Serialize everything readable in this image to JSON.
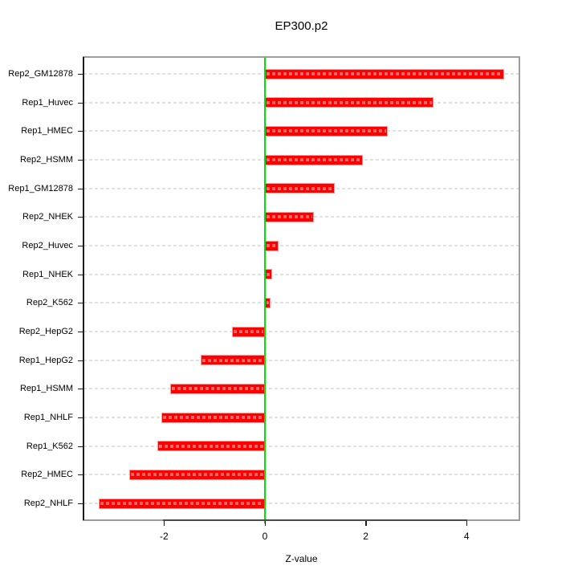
{
  "title": "EP300.p2",
  "chart_data": {
    "type": "bar",
    "orientation": "horizontal",
    "title": "EP300.p2",
    "xlabel": "Z-value",
    "ylabel": "",
    "categories": [
      "Rep2_GM12878",
      "Rep1_Huvec",
      "Rep1_HMEC",
      "Rep2_HSMM",
      "Rep1_GM12878",
      "Rep2_NHEK",
      "Rep2_Huvec",
      "Rep1_NHEK",
      "Rep2_K562",
      "Rep2_HepG2",
      "Rep1_HepG2",
      "Rep1_HSMM",
      "Rep1_NHLF",
      "Rep1_K562",
      "Rep2_HMEC",
      "Rep2_NHLF"
    ],
    "values": [
      4.74,
      3.34,
      2.43,
      1.94,
      1.38,
      0.97,
      0.27,
      0.14,
      0.11,
      -0.65,
      -1.27,
      -1.88,
      -2.05,
      -2.13,
      -2.69,
      -3.29
    ],
    "xticks": [
      -2,
      0,
      2,
      4
    ],
    "xtick_labels": [
      "-2",
      "0",
      "2",
      "4"
    ],
    "xlim": [
      -3.6,
      5.05
    ],
    "grid": true,
    "grid_style": "dashed-horizontal",
    "legend": "none",
    "zero_reference_line": 0,
    "colors": {
      "bar": "#ff0000",
      "bar_border": "#ff9a9a",
      "bar_dash_overlay": "rgba(255,255,255,0.40)",
      "zero_line": "#00e300",
      "grid_line": "#e0e0e0",
      "box_border": "#9c9c9c",
      "axis": "#1c1c1c",
      "background": "#ffffff",
      "text": "#000000"
    }
  }
}
